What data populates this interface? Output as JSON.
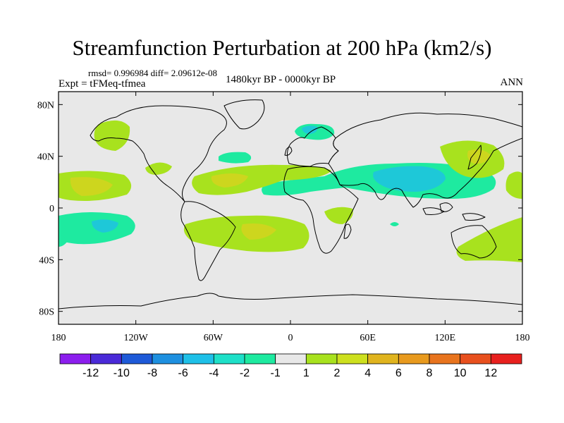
{
  "title": "Streamfunction Perturbation at 200 hPa (km2/s)",
  "stats": "rmsd= 0.996984 diff= 2.09612e-08",
  "experiment": "Expt = tFMeq-tfmea",
  "period": "1480kyr BP - 0000kyr BP",
  "season": "ANN",
  "map": {
    "projection": "cylindrical equidistant",
    "lat_ticks": [
      "80N",
      "40N",
      "0",
      "40S",
      "80S"
    ],
    "lon_ticks": [
      "180",
      "120W",
      "60W",
      "0",
      "60E",
      "120E",
      "180"
    ],
    "background_color": "#e8e8e8"
  },
  "colorbar": {
    "labels": [
      "-12",
      "-10",
      "-8",
      "-6",
      "-4",
      "-2",
      "-1",
      "1",
      "2",
      "4",
      "6",
      "8",
      "10",
      "12"
    ],
    "colors": [
      "#8c1eee",
      "#4a2ad8",
      "#1e5ad8",
      "#1e90e0",
      "#1ec0e8",
      "#1ee0c8",
      "#1eeaa0",
      "#e8e8e8",
      "#a8e21e",
      "#cde01e",
      "#e0b41e",
      "#e89a1e",
      "#e8741e",
      "#e8501e",
      "#e8201e"
    ]
  }
}
